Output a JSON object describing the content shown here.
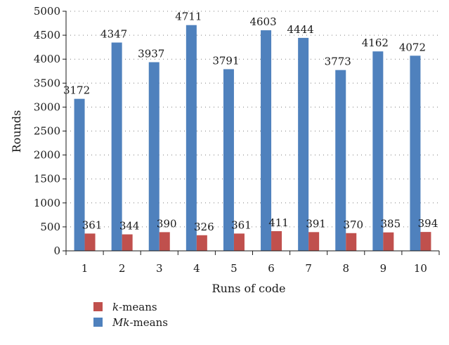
{
  "chart_data": {
    "type": "bar",
    "xlabel": "Runs of code",
    "ylabel": "Rounds",
    "categories": [
      "1",
      "2",
      "3",
      "4",
      "5",
      "6",
      "7",
      "8",
      "9",
      "10"
    ],
    "ylim": [
      0,
      5000
    ],
    "yticks": [
      0,
      500,
      1000,
      1500,
      2000,
      2500,
      3000,
      3500,
      4000,
      4500,
      5000
    ],
    "grid": "horizontal dotted",
    "legend_position": "bottom-left",
    "series": [
      {
        "name": "Mk-means",
        "name_parts": [
          {
            "text": "Mk",
            "italic": true
          },
          {
            "text": "-means",
            "italic": false
          }
        ],
        "color": "#4f81bd",
        "values": [
          3172,
          4347,
          3937,
          4711,
          3791,
          4603,
          4444,
          3773,
          4162,
          4072
        ]
      },
      {
        "name": "k-means",
        "name_parts": [
          {
            "text": "k",
            "italic": true
          },
          {
            "text": "-means",
            "italic": false
          }
        ],
        "color": "#c0504d",
        "values": [
          361,
          344,
          390,
          326,
          361,
          411,
          391,
          370,
          385,
          394
        ]
      }
    ],
    "legend_order": [
      1,
      0
    ]
  }
}
